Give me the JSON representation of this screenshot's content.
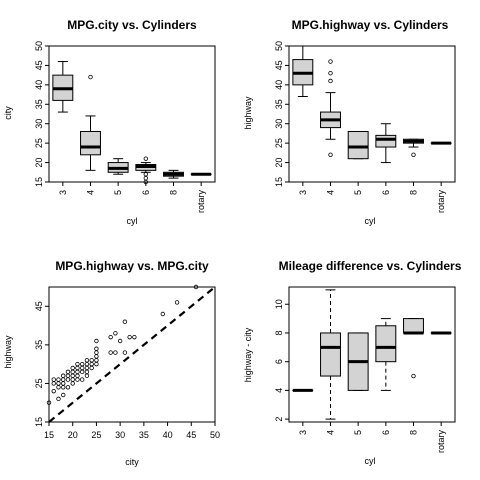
{
  "chart_data": [
    {
      "type": "boxplot",
      "title": "MPG.city vs. Cylinders",
      "xlabel": "cyl",
      "ylabel": "city",
      "categories": [
        "3",
        "4",
        "5",
        "6",
        "8",
        "rotary"
      ],
      "ylim": [
        15,
        50
      ],
      "yticks": [
        15,
        20,
        25,
        30,
        35,
        40,
        45,
        50
      ],
      "boxes": [
        {
          "min": 33,
          "q1": 36,
          "median": 39,
          "q3": 42.5,
          "max": 46,
          "outliers": []
        },
        {
          "min": 18,
          "q1": 22,
          "median": 24,
          "q3": 28,
          "max": 32,
          "outliers": [
            42
          ]
        },
        {
          "min": 17,
          "q1": 17.5,
          "median": 18.5,
          "q3": 20,
          "max": 21,
          "outliers": []
        },
        {
          "min": 17.5,
          "q1": 18,
          "median": 19,
          "q3": 19.5,
          "max": 20,
          "outliers": [
            15,
            16,
            17,
            21
          ]
        },
        {
          "min": 16,
          "q1": 16.5,
          "median": 17,
          "q3": 17.5,
          "max": 18,
          "outliers": []
        },
        {
          "min": 17,
          "q1": 17,
          "median": 17,
          "q3": 17,
          "max": 17,
          "outliers": []
        }
      ]
    },
    {
      "type": "boxplot",
      "title": "MPG.highway vs. Cylinders",
      "xlabel": "cyl",
      "ylabel": "highway",
      "categories": [
        "3",
        "4",
        "5",
        "6",
        "8",
        "rotary"
      ],
      "ylim": [
        15,
        50
      ],
      "yticks": [
        15,
        20,
        25,
        30,
        35,
        40,
        45,
        50
      ],
      "boxes": [
        {
          "min": 37,
          "q1": 40,
          "median": 43,
          "q3": 46.5,
          "max": 50,
          "outliers": []
        },
        {
          "min": 26,
          "q1": 29,
          "median": 31,
          "q3": 33,
          "max": 38,
          "outliers": [
            22,
            41,
            43,
            46
          ]
        },
        {
          "min": 21,
          "q1": 21,
          "median": 24,
          "q3": 28,
          "max": 28,
          "outliers": []
        },
        {
          "min": 20,
          "q1": 24,
          "median": 26,
          "q3": 27,
          "max": 30,
          "outliers": []
        },
        {
          "min": 24,
          "q1": 25,
          "median": 25.5,
          "q3": 26,
          "max": 26,
          "outliers": [
            22
          ]
        },
        {
          "min": 25,
          "q1": 25,
          "median": 25,
          "q3": 25,
          "max": 25,
          "outliers": []
        }
      ]
    },
    {
      "type": "scatter",
      "title": "MPG.highway vs. MPG.city",
      "xlabel": "city",
      "ylabel": "highway",
      "xlim": [
        15,
        50
      ],
      "ylim": [
        15,
        50
      ],
      "xticks": [
        15,
        20,
        25,
        30,
        35,
        40,
        45,
        50
      ],
      "yticks": [
        15,
        25,
        35,
        45
      ],
      "reference_line": {
        "intercept": 0,
        "slope": 1,
        "style": "dashed"
      },
      "points": [
        [
          15,
          20
        ],
        [
          16,
          23
        ],
        [
          16,
          25
        ],
        [
          16,
          26
        ],
        [
          17,
          21
        ],
        [
          17,
          24
        ],
        [
          17,
          25
        ],
        [
          17,
          26
        ],
        [
          18,
          22
        ],
        [
          18,
          24
        ],
        [
          18,
          25
        ],
        [
          18,
          26
        ],
        [
          18,
          27
        ],
        [
          19,
          24
        ],
        [
          19,
          26
        ],
        [
          19,
          27
        ],
        [
          19,
          28
        ],
        [
          20,
          25
        ],
        [
          20,
          26
        ],
        [
          20,
          27
        ],
        [
          20,
          28
        ],
        [
          20,
          29
        ],
        [
          21,
          26
        ],
        [
          21,
          27
        ],
        [
          21,
          28
        ],
        [
          21,
          29
        ],
        [
          21,
          30
        ],
        [
          22,
          26
        ],
        [
          22,
          28
        ],
        [
          22,
          29
        ],
        [
          22,
          30
        ],
        [
          23,
          27
        ],
        [
          23,
          28
        ],
        [
          23,
          29
        ],
        [
          23,
          30
        ],
        [
          23,
          31
        ],
        [
          24,
          29
        ],
        [
          24,
          30
        ],
        [
          24,
          31
        ],
        [
          25,
          30
        ],
        [
          25,
          31
        ],
        [
          25,
          32
        ],
        [
          25,
          33
        ],
        [
          25,
          34
        ],
        [
          25,
          36
        ],
        [
          28,
          33
        ],
        [
          28,
          37
        ],
        [
          29,
          33
        ],
        [
          29,
          38
        ],
        [
          30,
          36
        ],
        [
          31,
          33
        ],
        [
          31,
          41
        ],
        [
          32,
          37
        ],
        [
          33,
          37
        ],
        [
          39,
          43
        ],
        [
          42,
          46
        ],
        [
          46,
          50
        ]
      ]
    },
    {
      "type": "boxplot",
      "title": "Mileage difference vs. Cylinders",
      "xlabel": "cyl",
      "ylabel": "highway - city",
      "categories": [
        "3",
        "4",
        "5",
        "6",
        "8",
        "rotary"
      ],
      "ylim": [
        1.8,
        11.2
      ],
      "yticks": [
        2,
        4,
        6,
        8,
        10
      ],
      "boxes": [
        {
          "min": 4,
          "q1": 4,
          "median": 4,
          "q3": 4,
          "max": 4,
          "outliers": []
        },
        {
          "min": 2,
          "q1": 5,
          "median": 7,
          "q3": 8,
          "max": 11,
          "outliers": []
        },
        {
          "min": 4,
          "q1": 4,
          "median": 6,
          "q3": 8,
          "max": 8,
          "outliers": []
        },
        {
          "min": 4,
          "q1": 6,
          "median": 7,
          "q3": 8.5,
          "max": 9,
          "outliers": []
        },
        {
          "min": 8,
          "q1": 8,
          "median": 8,
          "q3": 9,
          "max": 9,
          "outliers": [
            5
          ]
        },
        {
          "min": 8,
          "q1": 8,
          "median": 8,
          "q3": 8,
          "max": 8,
          "outliers": []
        }
      ]
    }
  ]
}
